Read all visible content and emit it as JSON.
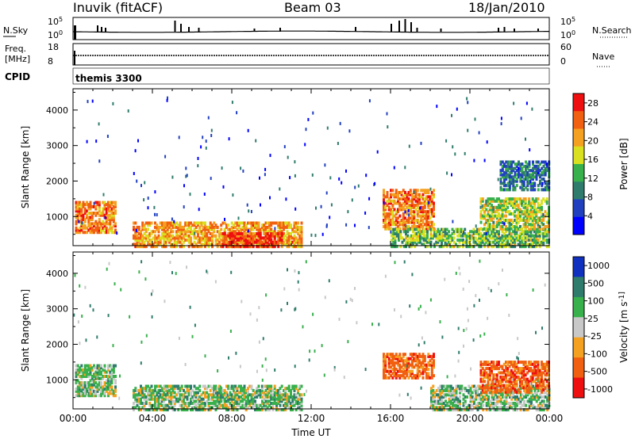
{
  "header": {
    "station": "Inuvik (fitACF)",
    "beam": "Beam 03",
    "date": "18/Jan/2010"
  },
  "strips": {
    "nsky_label": "N.Sky",
    "nsky_ticks": [
      "10^5",
      "10^0"
    ],
    "nsearch_label": "N.Search",
    "nsearch_ticks": [
      "10^5",
      "10^0"
    ],
    "freq_label_line1": "Freq.",
    "freq_label_line2": "[MHz]",
    "freq_ticks": [
      "18",
      "8"
    ],
    "nave_label": "Nave",
    "nave_ticks": [
      "60",
      "0"
    ],
    "cpid_label": "CPID",
    "cpid_value": "themis 3300"
  },
  "chart_data": [
    {
      "type": "heatmap",
      "quantity": "power",
      "ylabel": "Slant Range [km]",
      "xlabel": "Time UT",
      "x_ticks": [
        "00:00",
        "04:00",
        "08:00",
        "12:00",
        "16:00",
        "20:00",
        "00:00"
      ],
      "xlim_hours": [
        0,
        24
      ],
      "y_ticks": [
        1000,
        2000,
        3000,
        4000
      ],
      "ylim_km": [
        180,
        4600
      ],
      "colorbar_label": "Power [dB]",
      "colorbar_ticks": [
        4,
        8,
        12,
        16,
        20,
        24,
        28
      ],
      "colorbar_range": [
        0,
        30
      ],
      "colors": [
        "#0000ff",
        "#2040c0",
        "#2f7c6c",
        "#38b04c",
        "#d8e020",
        "#f4a020",
        "#f06010",
        "#ee1010"
      ],
      "regions": [
        {
          "t": [
            0.1,
            2.1
          ],
          "r": [
            600,
            1500
          ],
          "v": 24
        },
        {
          "t": [
            3.0,
            11.5
          ],
          "r": [
            200,
            900
          ],
          "v": 22
        },
        {
          "t": [
            7.5,
            10.5
          ],
          "r": [
            200,
            600
          ],
          "v": 28
        },
        {
          "t": [
            15.6,
            18.2
          ],
          "r": [
            700,
            1800
          ],
          "v": 24
        },
        {
          "t": [
            16.0,
            24.0
          ],
          "r": [
            200,
            700
          ],
          "v": 14
        },
        {
          "t": [
            20.5,
            24.0
          ],
          "r": [
            700,
            1600
          ],
          "v": 16
        },
        {
          "t": [
            21.5,
            24.0
          ],
          "r": [
            1800,
            2600
          ],
          "v": 8
        }
      ]
    },
    {
      "type": "heatmap",
      "quantity": "velocity",
      "ylabel": "Slant Range [km]",
      "xlabel": "Time UT",
      "x_ticks": [
        "00:00",
        "04:00",
        "08:00",
        "12:00",
        "16:00",
        "20:00",
        "00:00"
      ],
      "xlim_hours": [
        0,
        24
      ],
      "y_ticks": [
        1000,
        2000,
        3000,
        4000
      ],
      "ylim_km": [
        180,
        4600
      ],
      "colorbar_label": "Velocity [m s^-1]",
      "colorbar_ticks": [
        "1000",
        "500",
        "100",
        "25",
        "-25",
        "-100",
        "-500",
        "-1000"
      ],
      "colors": [
        "#1030c0",
        "#2f7c6c",
        "#38b04c",
        "#c8c8c8",
        "#f4a020",
        "#f06010",
        "#ee1010"
      ],
      "regions": [
        {
          "t": [
            0.1,
            2.1
          ],
          "r": [
            600,
            1500
          ],
          "v": "100 to 500 mixed with -100"
        },
        {
          "t": [
            3.0,
            11.5
          ],
          "r": [
            200,
            900
          ],
          "v": "100 to 500"
        },
        {
          "t": [
            15.6,
            18.2
          ],
          "r": [
            1100,
            1800
          ],
          "v": "-100 to -500"
        },
        {
          "t": [
            18.0,
            24.0
          ],
          "r": [
            200,
            900
          ],
          "v": "25 to 500 mixed with -25"
        },
        {
          "t": [
            20.5,
            24.0
          ],
          "r": [
            700,
            1600
          ],
          "v": "-100 to -500"
        }
      ]
    }
  ]
}
